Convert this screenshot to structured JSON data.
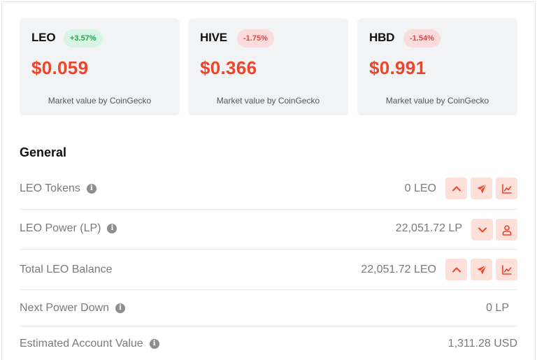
{
  "tokens": [
    {
      "symbol": "LEO",
      "change": "+3.57%",
      "direction": "up",
      "price": "$0.059",
      "source": "Market value by CoinGecko"
    },
    {
      "symbol": "HIVE",
      "change": "-1.75%",
      "direction": "down",
      "price": "$0.366",
      "source": "Market value by CoinGecko"
    },
    {
      "symbol": "HBD",
      "change": "-1.54%",
      "direction": "down",
      "price": "$0.991",
      "source": "Market value by CoinGecko"
    }
  ],
  "general": {
    "title": "General",
    "rows": [
      {
        "label": "LEO Tokens",
        "value": "0 LEO",
        "actions": [
          "chevron-up-icon",
          "send-icon",
          "chart-icon"
        ]
      },
      {
        "label": "LEO Power (LP)",
        "value": "22,051.72 LP",
        "actions": [
          "chevron-down-icon",
          "user-icon"
        ]
      },
      {
        "label": "Total LEO Balance",
        "value": "22,051.72 LEO",
        "actions": [
          "chevron-up-icon",
          "send-icon",
          "chart-icon"
        ]
      },
      {
        "label": "Next Power Down",
        "value": "0 LP",
        "actions": []
      },
      {
        "label": "Estimated Account Value",
        "value": "1,311.28 USD",
        "actions": []
      }
    ]
  },
  "colors": {
    "accent": "#f0442a",
    "positive": "#22a35a",
    "negative": "#e04545",
    "card_bg": "#f2f3f5",
    "button_bg": "#fde0d9"
  }
}
